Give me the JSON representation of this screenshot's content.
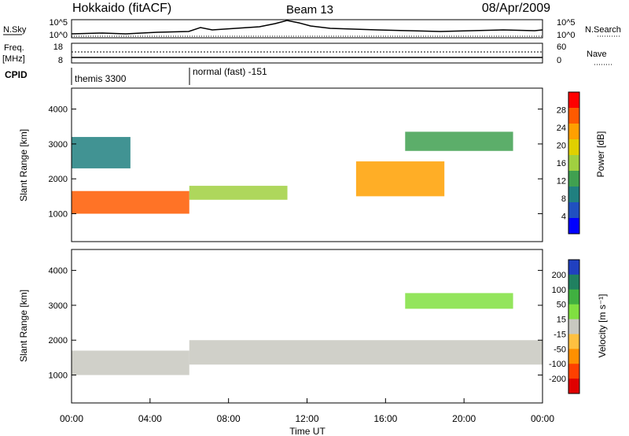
{
  "header": {
    "title": "Hokkaido (fitACF)",
    "beam": "Beam 13",
    "date": "08/Apr/2009"
  },
  "top_panels": {
    "nsky": {
      "label": "N.Sky",
      "yticks_left": [
        "10^5",
        "10^0"
      ],
      "yticks_right": [
        "10^5",
        "10^0"
      ],
      "right_label": "N.Search"
    },
    "freq": {
      "label": "Freq.",
      "unit": "[MHz]",
      "yticks_left": [
        "18",
        "8"
      ],
      "yticks_right": [
        "60",
        "0"
      ],
      "right_label": "Nave"
    },
    "cpid": {
      "label": "CPID",
      "modes": [
        {
          "name": "themis 3300",
          "start_hour": 0
        },
        {
          "name": "normal (fast) -151",
          "start_hour": 6
        }
      ]
    }
  },
  "chart_data": [
    {
      "type": "heatmap",
      "id": "power",
      "ylabel": "Slant Range [km]",
      "yticks": [
        1000,
        2000,
        3000,
        4000
      ],
      "ylim": [
        200,
        4600
      ],
      "xlim_hours": [
        0,
        24
      ],
      "colorbar": {
        "label": "Power [dB]",
        "ticks": [
          "28",
          "24",
          "20",
          "16",
          "12",
          "8",
          "4"
        ],
        "colors": [
          "#ff0000",
          "#ff5a00",
          "#ffa000",
          "#e0d000",
          "#a0d040",
          "#40a050",
          "#208080",
          "#2050c0",
          "#0000ff"
        ]
      },
      "regions": [
        {
          "t0": 0.0,
          "t1": 6.0,
          "r0": 1000,
          "r1": 1650,
          "level": 26
        },
        {
          "t0": 0.0,
          "t1": 3.0,
          "r0": 2300,
          "r1": 3200,
          "level": 6
        },
        {
          "t0": 6.0,
          "t1": 11.0,
          "r0": 1400,
          "r1": 1800,
          "level": 14
        },
        {
          "t0": 14.5,
          "t1": 19.0,
          "r0": 1500,
          "r1": 2500,
          "level": 22
        },
        {
          "t0": 17.0,
          "t1": 22.5,
          "r0": 2800,
          "r1": 3350,
          "level": 10
        }
      ]
    },
    {
      "type": "heatmap",
      "id": "velocity",
      "xlabel": "Time UT",
      "ylabel": "Slant Range [km]",
      "yticks": [
        1000,
        2000,
        3000,
        4000
      ],
      "ylim": [
        200,
        4600
      ],
      "xticks": [
        "00:00",
        "04:00",
        "08:00",
        "12:00",
        "16:00",
        "20:00",
        "00:00"
      ],
      "xlim_hours": [
        0,
        24
      ],
      "colorbar": {
        "label": "Velocity [m s⁻¹]",
        "ticks": [
          "200",
          "100",
          "50",
          "15",
          "-15",
          "-50",
          "-100",
          "-200"
        ],
        "colors": [
          "#2040c0",
          "#208060",
          "#40b040",
          "#80e040",
          "#c8c8c0",
          "#ffc040",
          "#ff9000",
          "#ff4000",
          "#e00000"
        ]
      },
      "regions": [
        {
          "t0": 0.0,
          "t1": 6.0,
          "r0": 1000,
          "r1": 1700,
          "level": 0
        },
        {
          "t0": 6.0,
          "t1": 24.0,
          "r0": 1300,
          "r1": 2000,
          "level": 0
        },
        {
          "t0": 17.0,
          "t1": 22.5,
          "r0": 2900,
          "r1": 3350,
          "level": 60
        }
      ]
    }
  ]
}
